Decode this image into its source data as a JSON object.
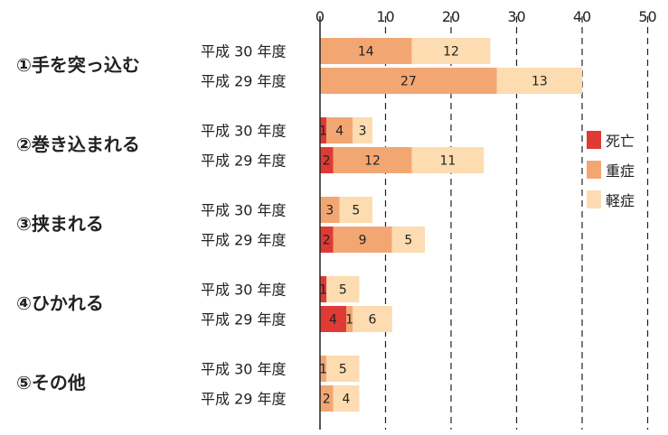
{
  "chart_data": {
    "type": "bar",
    "orientation": "horizontal",
    "stacked": true,
    "xlim": [
      0,
      50
    ],
    "xticks": [
      0,
      10,
      20,
      30,
      40,
      50
    ],
    "grid": "vertical dashed",
    "legend_position": "right",
    "colors": {
      "fatal": "#e03a35",
      "serious": "#f2a773",
      "minor": "#fcdcb0"
    },
    "series": [
      {
        "key": "fatal",
        "name": "死亡"
      },
      {
        "key": "serious",
        "name": "重症"
      },
      {
        "key": "minor",
        "name": "軽症"
      }
    ],
    "groups": [
      {
        "label": "①手を突っ込む",
        "rows": [
          {
            "label": "平成 30 年度",
            "fatal": 0,
            "serious": 14,
            "minor": 12
          },
          {
            "label": "平成 29 年度",
            "fatal": 0,
            "serious": 27,
            "minor": 13
          }
        ]
      },
      {
        "label": "②巻き込まれる",
        "rows": [
          {
            "label": "平成 30 年度",
            "fatal": 1,
            "serious": 4,
            "minor": 3
          },
          {
            "label": "平成 29 年度",
            "fatal": 2,
            "serious": 12,
            "minor": 11
          }
        ]
      },
      {
        "label": "③挟まれる",
        "rows": [
          {
            "label": "平成 30 年度",
            "fatal": 0,
            "serious": 3,
            "minor": 5
          },
          {
            "label": "平成 29 年度",
            "fatal": 2,
            "serious": 9,
            "minor": 5
          }
        ]
      },
      {
        "label": "④ひかれる",
        "rows": [
          {
            "label": "平成 30 年度",
            "fatal": 1,
            "serious": 0,
            "minor": 5
          },
          {
            "label": "平成 29 年度",
            "fatal": 4,
            "serious": 1,
            "minor": 6
          }
        ]
      },
      {
        "label": "⑤その他",
        "rows": [
          {
            "label": "平成 30 年度",
            "fatal": 0,
            "serious": 1,
            "minor": 5
          },
          {
            "label": "平成 29 年度",
            "fatal": 0,
            "serious": 2,
            "minor": 4
          }
        ]
      }
    ]
  }
}
